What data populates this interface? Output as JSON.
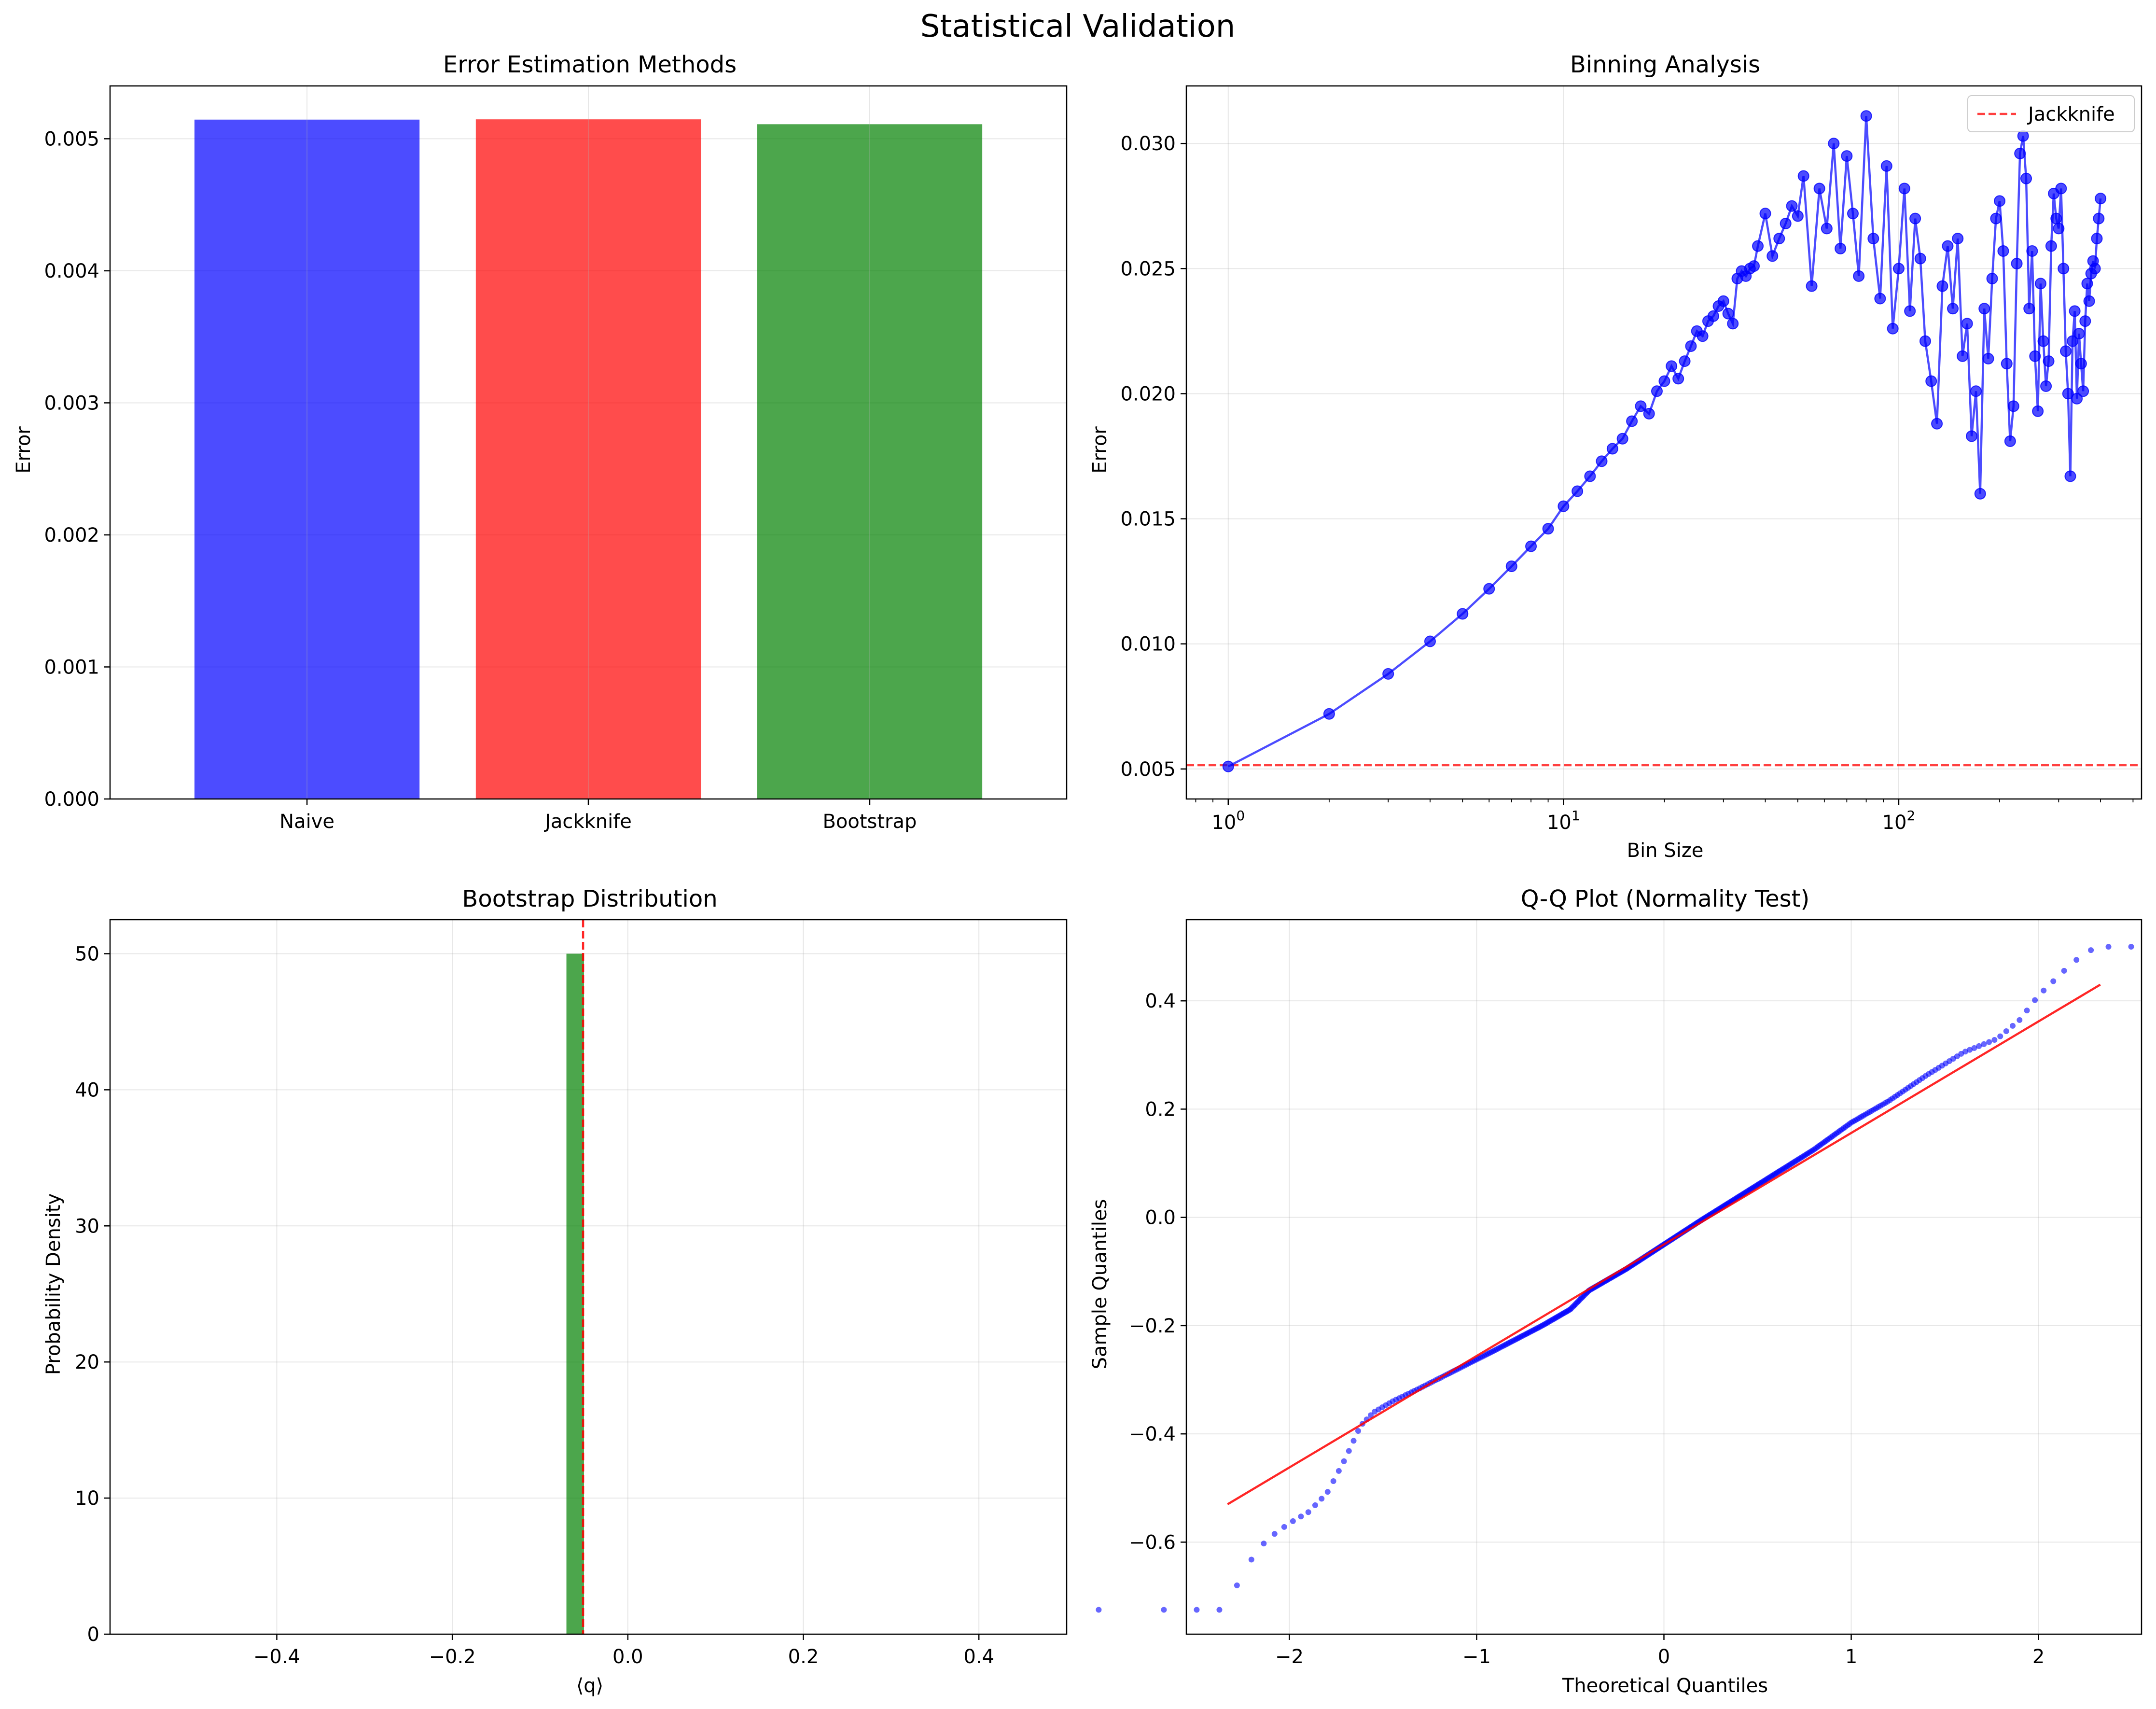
{
  "figure": {
    "suptitle": "Statistical Validation"
  },
  "colors": {
    "blue": "#0000ff",
    "red": "#ff0000",
    "green": "#008000",
    "grid": "#b0b0b0"
  },
  "chart_data": [
    {
      "type": "bar",
      "title": "Error Estimation Methods",
      "xlabel": "",
      "ylabel": "Error",
      "categories": [
        "Naive",
        "Jackknife",
        "Bootstrap"
      ],
      "values": [
        0.005145,
        0.005147,
        0.00511
      ],
      "bar_colors": [
        "blue",
        "red",
        "green"
      ],
      "ylim": [
        0,
        0.0054
      ],
      "yticks": [
        0,
        0.001,
        0.002,
        0.003,
        0.004,
        0.005
      ],
      "ytick_labels": [
        "0.000",
        "0.001",
        "0.002",
        "0.003",
        "0.004",
        "0.005"
      ],
      "grid": true
    },
    {
      "type": "line",
      "title": "Binning Analysis",
      "xlabel": "Bin Size",
      "ylabel": "Error",
      "xscale": "log",
      "xlim": [
        0.75,
        530
      ],
      "ylim": [
        0.0038,
        0.0323
      ],
      "yticks": [
        0.005,
        0.01,
        0.015,
        0.02,
        0.025,
        0.03
      ],
      "ytick_labels": [
        "0.005",
        "0.010",
        "0.015",
        "0.020",
        "0.025",
        "0.030"
      ],
      "xticks": [
        1,
        10,
        100
      ],
      "xtick_labels": [
        {
          "base": "10",
          "exp": "0"
        },
        {
          "base": "10",
          "exp": "1"
        },
        {
          "base": "10",
          "exp": "2"
        }
      ],
      "series": [
        {
          "color": "blue",
          "marker": "circle",
          "x": [
            1,
            2,
            3,
            4,
            5,
            6,
            7,
            8,
            9,
            10,
            11,
            12,
            13,
            14,
            15,
            16,
            17,
            18,
            19,
            20,
            21,
            22,
            23,
            24,
            25,
            26,
            27,
            28,
            29,
            30,
            31,
            32,
            33,
            34,
            35,
            36,
            37,
            38,
            40,
            42,
            44,
            46,
            48,
            50,
            52,
            55,
            58,
            61,
            64,
            67,
            70,
            73,
            76,
            80,
            84,
            88,
            92,
            96,
            100,
            104,
            108,
            112,
            116,
            120,
            125,
            130,
            135,
            140,
            145,
            150,
            155,
            160,
            165,
            170,
            175,
            180,
            185,
            190,
            195,
            200,
            205,
            210,
            215,
            220,
            225,
            230,
            235,
            240,
            245,
            250,
            255,
            260,
            265,
            270,
            275,
            280,
            285,
            290,
            295,
            300,
            305,
            310,
            315,
            320,
            325,
            330,
            335,
            340,
            345,
            350,
            355,
            360,
            365,
            370,
            375,
            380,
            385,
            390,
            395,
            400
          ],
          "y": [
            0.0051,
            0.0072,
            0.0088,
            0.0101,
            0.0112,
            0.0122,
            0.0131,
            0.0139,
            0.0146,
            0.0155,
            0.0161,
            0.0167,
            0.0173,
            0.0178,
            0.0182,
            0.0189,
            0.0195,
            0.0192,
            0.0201,
            0.0205,
            0.0211,
            0.0206,
            0.0213,
            0.0219,
            0.0225,
            0.0223,
            0.0229,
            0.0231,
            0.0235,
            0.0237,
            0.0232,
            0.0228,
            0.0246,
            0.0249,
            0.0247,
            0.025,
            0.0251,
            0.0259,
            0.0272,
            0.0255,
            0.0262,
            0.0268,
            0.0275,
            0.0271,
            0.0287,
            0.0243,
            0.0282,
            0.0266,
            0.03,
            0.0258,
            0.0295,
            0.0272,
            0.0247,
            0.0311,
            0.0262,
            0.0238,
            0.0291,
            0.0226,
            0.025,
            0.0282,
            0.0233,
            0.027,
            0.0254,
            0.0221,
            0.0205,
            0.0188,
            0.0243,
            0.0259,
            0.0234,
            0.0262,
            0.0215,
            0.0228,
            0.0183,
            0.0201,
            0.016,
            0.0234,
            0.0214,
            0.0246,
            0.027,
            0.0277,
            0.0257,
            0.0212,
            0.0181,
            0.0195,
            0.0252,
            0.0296,
            0.0303,
            0.0286,
            0.0234,
            0.0257,
            0.0215,
            0.0193,
            0.0244,
            0.0221,
            0.0203,
            0.0213,
            0.0259,
            0.028,
            0.027,
            0.0266,
            0.0282,
            0.025,
            0.0217,
            0.02,
            0.0167,
            0.0221,
            0.0233,
            0.0198,
            0.0224,
            0.0212,
            0.0201,
            0.0229,
            0.0244,
            0.0237,
            0.0248,
            0.0253,
            0.025,
            0.0262,
            0.027,
            0.0278
          ]
        }
      ],
      "hline": {
        "y": 0.00515,
        "color": "red",
        "style": "dashed",
        "label": "Jackknife"
      },
      "legend": {
        "position": "upper right",
        "entries": [
          "Jackknife"
        ]
      },
      "grid": true
    },
    {
      "type": "histogram",
      "title": "Bootstrap Distribution",
      "xlabel": "⟨q⟩",
      "ylabel": "Probability Density",
      "xlim": [
        -0.59,
        0.5
      ],
      "ylim": [
        0,
        52.5
      ],
      "xticks": [
        -0.4,
        -0.2,
        0.0,
        0.2,
        0.4
      ],
      "xtick_labels": [
        "−0.4",
        "−0.2",
        "0.0",
        "0.2",
        "0.4"
      ],
      "yticks": [
        0,
        10,
        20,
        30,
        40,
        50
      ],
      "ytick_labels": [
        "0",
        "10",
        "20",
        "30",
        "40",
        "50"
      ],
      "bins": [
        {
          "x0": -0.07,
          "x1": -0.05,
          "density": 50
        }
      ],
      "bar_color": "green",
      "vline": {
        "x": -0.051,
        "color": "red",
        "style": "dashed"
      },
      "grid": true
    },
    {
      "type": "scatter",
      "title": "Q-Q Plot (Normality Test)",
      "xlabel": "Theoretical Quantiles",
      "ylabel": "Sample Quantiles",
      "xlim": [
        -2.55,
        2.55
      ],
      "ylim": [
        -0.77,
        0.55
      ],
      "xticks": [
        -2,
        -1,
        0,
        1,
        2
      ],
      "xtick_labels": [
        "−2",
        "−1",
        "0",
        "1",
        "2"
      ],
      "yticks": [
        -0.6,
        -0.4,
        -0.2,
        0.0,
        0.2,
        0.4
      ],
      "ytick_labels": [
        "−0.6",
        "−0.4",
        "−0.2",
        "0.0",
        "0.2",
        "0.4"
      ],
      "n_points": 400,
      "sample_curve": [
        [
          -2.33,
          -0.725
        ],
        [
          -2.28,
          -0.68
        ],
        [
          -2.22,
          -0.64
        ],
        [
          -2.12,
          -0.595
        ],
        [
          -2.0,
          -0.565
        ],
        [
          -1.9,
          -0.545
        ],
        [
          -1.8,
          -0.51
        ],
        [
          -1.7,
          -0.445
        ],
        [
          -1.62,
          -0.385
        ],
        [
          -1.55,
          -0.36
        ],
        [
          -1.45,
          -0.34
        ],
        [
          -1.3,
          -0.315
        ],
        [
          -1.1,
          -0.28
        ],
        [
          -0.9,
          -0.245
        ],
        [
          -0.65,
          -0.2
        ],
        [
          -0.5,
          -0.17
        ],
        [
          -0.4,
          -0.135
        ],
        [
          -0.2,
          -0.095
        ],
        [
          0.0,
          -0.05
        ],
        [
          0.2,
          -0.005
        ],
        [
          0.5,
          0.06
        ],
        [
          0.8,
          0.125
        ],
        [
          1.0,
          0.175
        ],
        [
          1.2,
          0.215
        ],
        [
          1.4,
          0.262
        ],
        [
          1.6,
          0.305
        ],
        [
          1.78,
          0.33
        ],
        [
          1.9,
          0.365
        ],
        [
          2.0,
          0.41
        ],
        [
          2.15,
          0.46
        ],
        [
          2.25,
          0.49
        ],
        [
          2.33,
          0.5
        ]
      ],
      "fit_line": {
        "x": [
          -2.33,
          2.33
        ],
        "y": [
          -0.53,
          0.43
        ],
        "color": "red"
      },
      "point_color": "blue",
      "grid": true
    }
  ]
}
